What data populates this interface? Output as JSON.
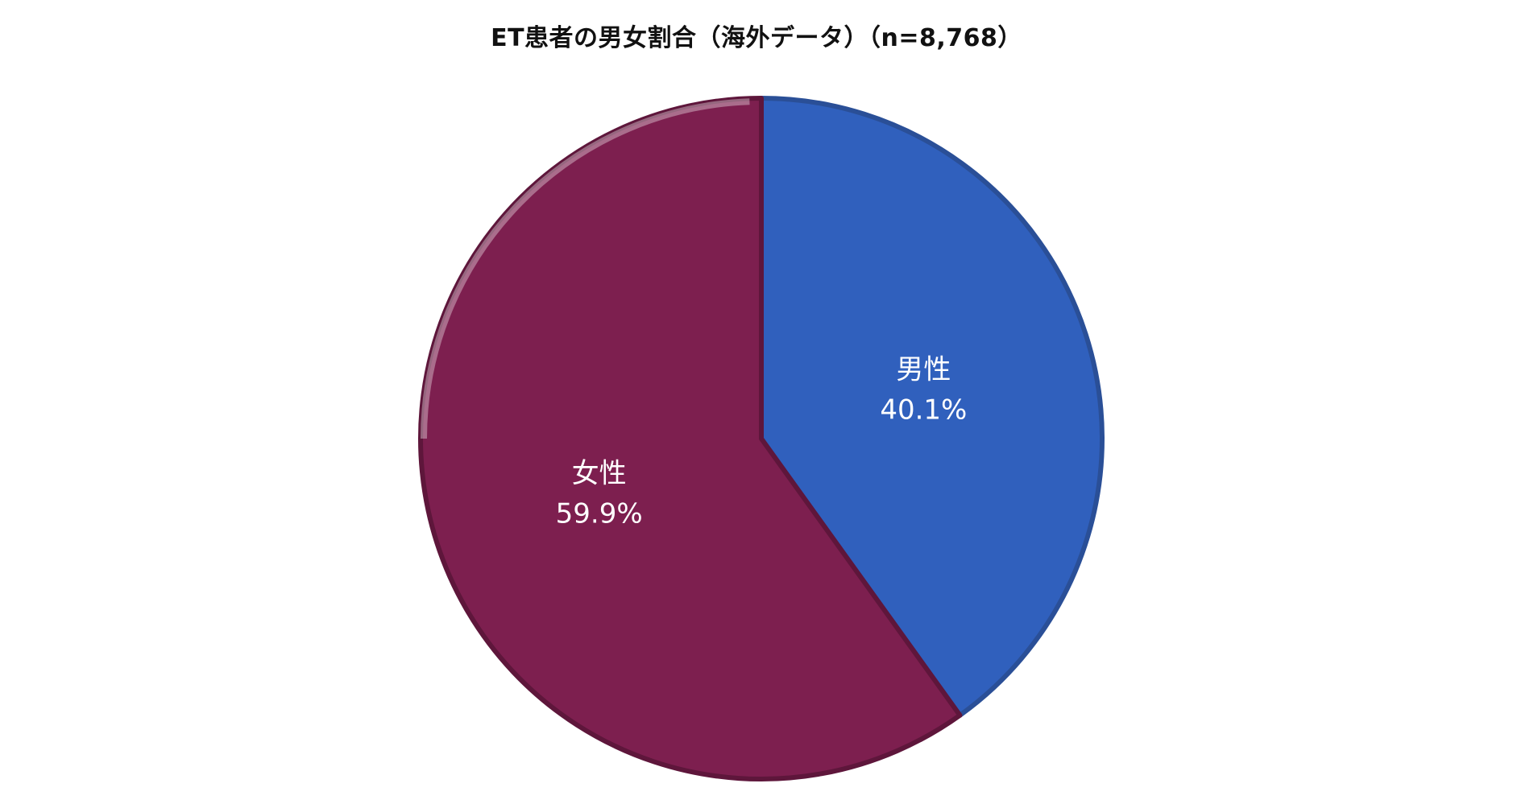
{
  "chart_data": {
    "type": "pie",
    "title": "ET患者の男女割合（海外データ）（n=8,768）",
    "slices": [
      {
        "label": "男性",
        "value": 40.1,
        "value_label": "40.1%",
        "color": "#3060bd",
        "rim_color": "#2a4f97"
      },
      {
        "label": "女性",
        "value": 59.9,
        "value_label": "59.9%",
        "color": "#7d1f4f",
        "rim_color": "#5e163b"
      }
    ],
    "start_angle": "12 o'clock",
    "direction": "clockwise",
    "legend": "none"
  }
}
